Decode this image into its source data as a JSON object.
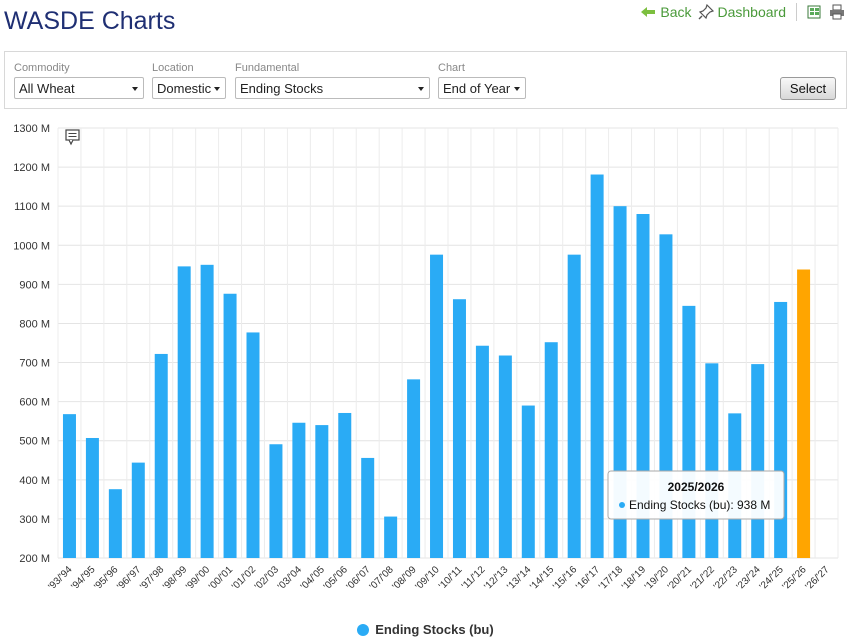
{
  "header": {
    "title": "WASDE Charts",
    "back_label": "Back",
    "dashboard_label": "Dashboard"
  },
  "filters": {
    "commodity": {
      "label": "Commodity",
      "value": "All Wheat"
    },
    "location": {
      "label": "Location",
      "value": "Domestic"
    },
    "fundamental": {
      "label": "Fundamental",
      "value": "Ending Stocks"
    },
    "chart": {
      "label": "Chart",
      "value": "End of Year"
    },
    "select_label": "Select"
  },
  "tooltip": {
    "title": "2025/2026",
    "series": "Ending Stocks (bu):",
    "value": "938 M"
  },
  "colors": {
    "bar": "#2aabf5",
    "highlight": "#ffa500",
    "title": "#1f2f73",
    "link": "#4a9a3a"
  },
  "icons": {
    "back": "arrow-left-icon",
    "dashboard": "pin-icon",
    "export": "spreadsheet-icon",
    "print": "printer-icon",
    "comment": "comment-icon"
  },
  "chart_data": {
    "type": "bar",
    "categories": [
      "'93/'94",
      "'94/'95",
      "'95/'96",
      "'96/'97",
      "'97/'98",
      "'98/'99",
      "'99/'00",
      "'00/'01",
      "'01/'02",
      "'02/'03",
      "'03/'04",
      "'04/'05",
      "'05/'06",
      "'06/'07",
      "'07/'08",
      "'08/'09",
      "'09/'10",
      "'10/'11",
      "'11/'12",
      "'12/'13",
      "'13/'14",
      "'14/'15",
      "'15/'16",
      "'16/'17",
      "'17/'18",
      "'18/'19",
      "'19/'20",
      "'20/'21",
      "'21/'22",
      "'22/'23",
      "'23/'24",
      "'24/'25",
      "'25/'26",
      "'26/'27"
    ],
    "series": [
      {
        "name": "Ending Stocks (bu)",
        "values": [
          568,
          507,
          376,
          444,
          722,
          946,
          950,
          876,
          777,
          491,
          546,
          540,
          571,
          456,
          306,
          657,
          976,
          862,
          743,
          718,
          590,
          752,
          976,
          1181,
          1100,
          1080,
          1028,
          845,
          698,
          570,
          696,
          855,
          938,
          null
        ]
      }
    ],
    "highlight_index": 32,
    "yticks": [
      "200 M",
      "300 M",
      "400 M",
      "500 M",
      "600 M",
      "700 M",
      "800 M",
      "900 M",
      "1000 M",
      "1100 M",
      "1200 M",
      "1300 M"
    ],
    "ylim": [
      200,
      1300
    ],
    "grid": true,
    "legend": "bottom-center"
  }
}
